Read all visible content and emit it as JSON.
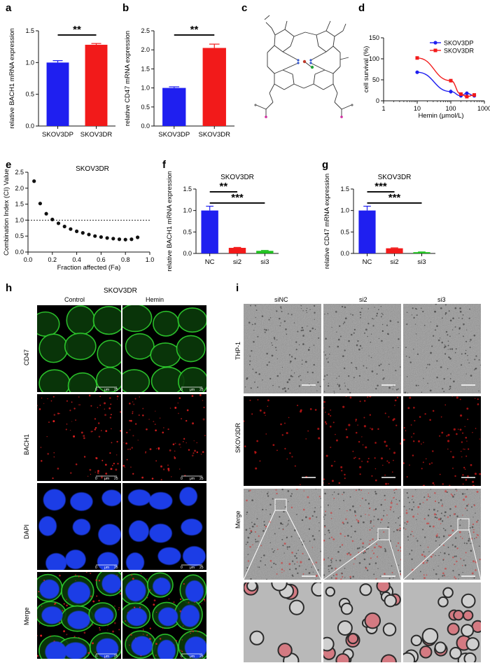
{
  "figure": {
    "panel_letters": [
      "a",
      "b",
      "c",
      "d",
      "e",
      "f",
      "g",
      "h",
      "i"
    ],
    "colors": {
      "blue": "#1f1ff0",
      "red": "#f21a1a",
      "green": "#1ec01e",
      "black": "#111111",
      "cell_green": "#2fb82f",
      "cell_red": "#d8232a",
      "nucleus_blue": "#1f3ee6"
    }
  },
  "chart_data": [
    {
      "id": "a",
      "type": "bar",
      "title": "",
      "xlabel": "",
      "ylabel": "relative BACH1 mRNA expression",
      "categories": [
        "SKOV3DP",
        "SKOV3DR"
      ],
      "values": [
        1.0,
        1.28
      ],
      "errors": [
        0.03,
        0.02
      ],
      "colors": [
        "#1f1ff0",
        "#f21a1a"
      ],
      "ylim": [
        0,
        1.5
      ],
      "yticks": [
        "0.0",
        "0.5",
        "1.0",
        "1.5"
      ],
      "yticks_val": [
        0,
        0.5,
        1.0,
        1.5
      ],
      "significance": [
        {
          "from": 0,
          "to": 1,
          "label": "**"
        }
      ]
    },
    {
      "id": "b",
      "type": "bar",
      "title": "",
      "xlabel": "",
      "ylabel": "relative CD47 mRNA expression",
      "categories": [
        "SKOV3DP",
        "SKOV3DR"
      ],
      "values": [
        1.0,
        2.05
      ],
      "errors": [
        0.03,
        0.1
      ],
      "colors": [
        "#1f1ff0",
        "#f21a1a"
      ],
      "ylim": [
        0,
        2.5
      ],
      "yticks": [
        "0.0",
        "0.5",
        "1.0",
        "1.5",
        "2.0",
        "2.5"
      ],
      "yticks_val": [
        0,
        0.5,
        1.0,
        1.5,
        2.0,
        2.5
      ],
      "significance": [
        {
          "from": 0,
          "to": 1,
          "label": "**"
        }
      ]
    },
    {
      "id": "d",
      "type": "scatter",
      "title": "",
      "xlabel": "Hemin (μmol/L)",
      "ylabel": "cell survival (%)",
      "xscale": "log",
      "xlim": [
        1,
        1000
      ],
      "ylim": [
        0,
        150
      ],
      "xticks": [
        "1",
        "10",
        "100",
        "1000"
      ],
      "xticks_val": [
        1,
        10,
        100,
        1000
      ],
      "yticks": [
        "0",
        "50",
        "100",
        "150"
      ],
      "yticks_val": [
        0,
        50,
        100,
        150
      ],
      "legend_position": "top-right",
      "series": [
        {
          "name": "SKOV3DP",
          "color": "#1f1ff0",
          "x": [
            10,
            100,
            200,
            300,
            500
          ],
          "y": [
            68,
            22,
            12,
            18,
            12
          ],
          "err": [
            3,
            5,
            4,
            4,
            3
          ]
        },
        {
          "name": "SKOV3DR",
          "color": "#f21a1a",
          "x": [
            10,
            100,
            200,
            300,
            500
          ],
          "y": [
            102,
            48,
            16,
            10,
            14
          ],
          "err": [
            3,
            3,
            3,
            3,
            3
          ]
        }
      ]
    },
    {
      "id": "e",
      "type": "scatter",
      "title": "SKOV3DR",
      "xlabel": "Fraction affected (Fa)",
      "ylabel": "Combination Index (CI) Value",
      "xlim": [
        0,
        1.0
      ],
      "ylim": [
        0,
        2.5
      ],
      "xticks": [
        "0.0",
        "0.2",
        "0.4",
        "0.6",
        "0.8",
        "1.0"
      ],
      "xticks_val": [
        0,
        0.2,
        0.4,
        0.6,
        0.8,
        1.0
      ],
      "yticks": [
        "0.0",
        "0.5",
        "1.0",
        "1.5",
        "2.0",
        "2.5"
      ],
      "yticks_val": [
        0,
        0.5,
        1.0,
        1.5,
        2.0,
        2.5
      ],
      "reference_line": 1.0,
      "x": [
        0.05,
        0.1,
        0.15,
        0.2,
        0.25,
        0.3,
        0.35,
        0.4,
        0.45,
        0.5,
        0.55,
        0.6,
        0.65,
        0.7,
        0.75,
        0.8,
        0.85,
        0.9
      ],
      "y": [
        2.22,
        1.52,
        1.2,
        1.02,
        0.9,
        0.8,
        0.72,
        0.65,
        0.6,
        0.55,
        0.5,
        0.47,
        0.44,
        0.42,
        0.4,
        0.39,
        0.4,
        0.46
      ]
    },
    {
      "id": "f",
      "type": "bar",
      "title": "SKOV3DR",
      "xlabel": "",
      "ylabel": "relative BACH1 mRNA expression",
      "categories": [
        "NC",
        "si2",
        "si3"
      ],
      "values": [
        1.0,
        0.13,
        0.06
      ],
      "errors": [
        0.1,
        0.01,
        0.01
      ],
      "colors": [
        "#1f1ff0",
        "#f21a1a",
        "#1ec01e"
      ],
      "ylim": [
        0,
        1.5
      ],
      "yticks": [
        "0.0",
        "0.5",
        "1.0",
        "1.5"
      ],
      "yticks_val": [
        0,
        0.5,
        1.0,
        1.5
      ],
      "significance": [
        {
          "from": 0,
          "to": 1,
          "label": "**"
        },
        {
          "from": 0,
          "to": 2,
          "label": "***"
        }
      ]
    },
    {
      "id": "g",
      "type": "bar",
      "title": "SKOV3DR",
      "xlabel": "",
      "ylabel": "relative CD47 mRNA expression",
      "categories": [
        "NC",
        "si2",
        "si3"
      ],
      "values": [
        1.0,
        0.12,
        0.03
      ],
      "errors": [
        0.1,
        0.01,
        0.005
      ],
      "colors": [
        "#1f1ff0",
        "#f21a1a",
        "#1ec01e"
      ],
      "ylim": [
        0,
        1.5
      ],
      "yticks": [
        "0.0",
        "0.5",
        "1.0",
        "1.5"
      ],
      "yticks_val": [
        0,
        0.5,
        1.0,
        1.5
      ],
      "significance": [
        {
          "from": 0,
          "to": 1,
          "label": "***"
        },
        {
          "from": 0,
          "to": 2,
          "label": "***"
        }
      ]
    }
  ],
  "panel_h": {
    "title": "SKOV3DR",
    "columns": [
      "Control",
      "Hemin"
    ],
    "rows": [
      "CD47",
      "BACH1",
      "DAPI",
      "Merge"
    ],
    "scalebar": {
      "left": "0",
      "mid": "μm",
      "right": "25"
    }
  },
  "panel_i": {
    "columns": [
      "siNC",
      "si2",
      "si3"
    ],
    "rows": [
      "THP-1",
      "SKOV3DR",
      "Merge"
    ]
  }
}
